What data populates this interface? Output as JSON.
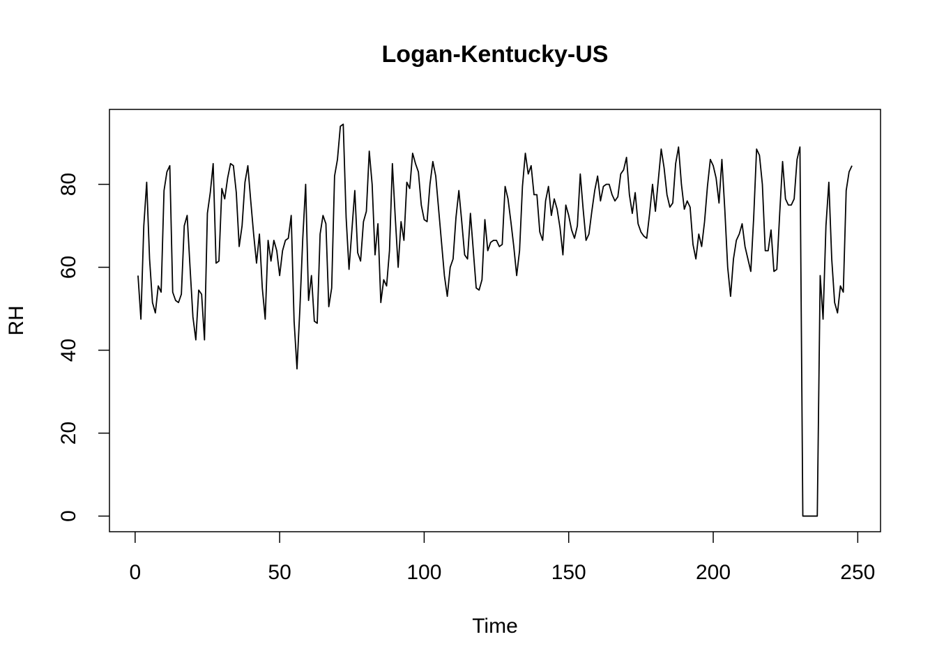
{
  "chart_data": {
    "type": "line",
    "title": "Logan-Kentucky-US",
    "x_label": "Time",
    "y_label": "RH",
    "color": "#000000",
    "xlim": [
      -8.88,
      257.88
    ],
    "ylim": [
      -3.77,
      98.07
    ],
    "xticks": [
      0,
      50,
      100,
      150,
      200,
      250
    ],
    "yticks": [
      0,
      20,
      40,
      60,
      80
    ],
    "x": [
      1,
      2,
      3,
      4,
      5,
      6,
      7,
      8,
      9,
      10,
      11,
      12,
      13,
      14,
      15,
      16,
      17,
      18,
      19,
      20,
      21,
      22,
      23,
      24,
      25,
      26,
      27,
      28,
      29,
      30,
      31,
      32,
      33,
      34,
      35,
      36,
      37,
      38,
      39,
      40,
      41,
      42,
      43,
      44,
      45,
      46,
      47,
      48,
      49,
      50,
      51,
      52,
      53,
      54,
      55,
      56,
      57,
      58,
      59,
      60,
      61,
      62,
      63,
      64,
      65,
      66,
      67,
      68,
      69,
      70,
      71,
      72,
      73,
      74,
      75,
      76,
      77,
      78,
      79,
      80,
      81,
      82,
      83,
      84,
      85,
      86,
      87,
      88,
      89,
      90,
      91,
      92,
      93,
      94,
      95,
      96,
      97,
      98,
      99,
      100,
      101,
      102,
      103,
      104,
      105,
      106,
      107,
      108,
      109,
      110,
      111,
      112,
      113,
      114,
      115,
      116,
      117,
      118,
      119,
      120,
      121,
      122,
      123,
      124,
      125,
      126,
      127,
      128,
      129,
      130,
      131,
      132,
      133,
      134,
      135,
      136,
      137,
      138,
      139,
      140,
      141,
      142,
      143,
      144,
      145,
      146,
      147,
      148,
      149,
      150,
      151,
      152,
      153,
      154,
      155,
      156,
      157,
      158,
      159,
      160,
      161,
      162,
      163,
      164,
      165,
      166,
      167,
      168,
      169,
      170,
      171,
      172,
      173,
      174,
      175,
      176,
      177,
      178,
      179,
      180,
      181,
      182,
      183,
      184,
      185,
      186,
      187,
      188,
      189,
      190,
      191,
      192,
      193,
      194,
      195,
      196,
      197,
      198,
      199,
      200,
      201,
      202,
      203,
      204,
      205,
      206,
      207,
      208,
      209,
      210,
      211,
      212,
      213,
      214,
      215,
      216,
      217,
      218,
      219,
      220,
      221,
      222,
      223,
      224,
      225,
      226,
      227,
      228,
      229,
      230,
      231,
      232,
      233,
      234,
      235,
      236,
      237,
      238,
      239,
      240,
      241,
      242,
      243,
      244,
      245,
      246,
      247,
      248
    ],
    "values": [
      58,
      47.5,
      70,
      80.5,
      62,
      51.5,
      49,
      55.5,
      54,
      78.5,
      83,
      84.5,
      54,
      52,
      51.5,
      53.5,
      70,
      72.5,
      60,
      48,
      42.5,
      54.5,
      53.5,
      42.5,
      73,
      78,
      85,
      61,
      61.5,
      79,
      76.5,
      81.5,
      85,
      84.5,
      78,
      65,
      70,
      80.5,
      84.5,
      76,
      68,
      61,
      68,
      55,
      47.5,
      66.5,
      61.5,
      66.5,
      64,
      58,
      64,
      66.5,
      67,
      72.5,
      47,
      35.5,
      50,
      67,
      80,
      52,
      58,
      47,
      46.5,
      68,
      72.5,
      70.5,
      50.5,
      55,
      82,
      86,
      94,
      94.5,
      72,
      59.5,
      69,
      78.5,
      63.5,
      61.5,
      71,
      73.5,
      88,
      80,
      63,
      70.5,
      51.5,
      57,
      55.5,
      64,
      85,
      72,
      60,
      71,
      66.5,
      80.5,
      79,
      87.5,
      85,
      83,
      75,
      71.5,
      71,
      80,
      85.5,
      82,
      74,
      66,
      58,
      53,
      60,
      62,
      72,
      78.5,
      71,
      63,
      62,
      73,
      64,
      55,
      54.5,
      57,
      71.5,
      64,
      66,
      66.5,
      66.5,
      65,
      65.5,
      79.5,
      76.5,
      71,
      65,
      58,
      64,
      79.5,
      87.5,
      82.5,
      84.5,
      77.5,
      77.5,
      68.5,
      66.5,
      76,
      79.5,
      72.5,
      76.5,
      74,
      69.5,
      63,
      75,
      72.5,
      69,
      67,
      70,
      82.5,
      74,
      66.5,
      68,
      73.5,
      78.5,
      82,
      76,
      79.5,
      80,
      80,
      77.5,
      76,
      77,
      82.5,
      83.5,
      86.5,
      77.5,
      73,
      78,
      70.5,
      68.5,
      67.5,
      67,
      73,
      80,
      73.5,
      81,
      88.5,
      84,
      77.5,
      74.5,
      75.5,
      85,
      89,
      80,
      74,
      76,
      74.5,
      65.5,
      62,
      68,
      65,
      71,
      79.5,
      86,
      84.5,
      81.5,
      75.5,
      86,
      74,
      60,
      53,
      62,
      66.5,
      68,
      70.5,
      65,
      62,
      59,
      72,
      88.5,
      87,
      80,
      64,
      64,
      69,
      59,
      59.5,
      73,
      85.5,
      76.5,
      75,
      75,
      76.5,
      86,
      89,
      0,
      0,
      0,
      0,
      0,
      0,
      58,
      47.5,
      70,
      80.5,
      62,
      51.5,
      49,
      55.5,
      54,
      78.5,
      83,
      84.5
    ]
  }
}
